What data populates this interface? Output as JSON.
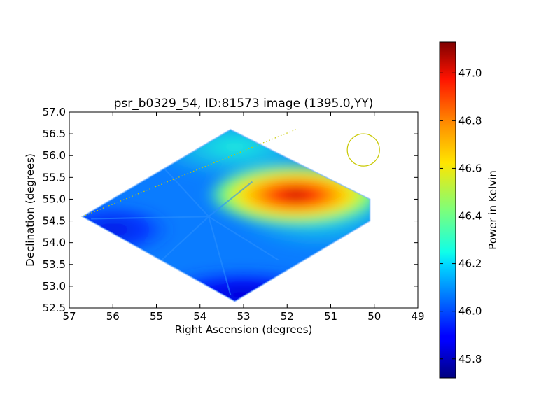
{
  "chart_data": {
    "type": "heatmap",
    "title": "psr_b0329_54, ID:81573 image (1395.0,YY)",
    "xlabel": "Right Ascension (degrees)",
    "ylabel": "Declination (degrees)",
    "xlim": [
      57,
      49
    ],
    "ylim": [
      52.5,
      57.0
    ],
    "x_ticks": [
      57,
      56,
      55,
      54,
      53,
      52,
      51,
      50,
      49
    ],
    "y_ticks": [
      52.5,
      53.0,
      53.5,
      54.0,
      54.5,
      55.0,
      55.5,
      56.0,
      56.5,
      57.0
    ],
    "x_tick_labels": [
      "57",
      "56",
      "55",
      "54",
      "53",
      "52",
      "51",
      "50",
      "49"
    ],
    "y_tick_labels": [
      "52.5",
      "53.0",
      "53.5",
      "54.0",
      "54.5",
      "55.0",
      "55.5",
      "56.0",
      "56.5",
      "57.0"
    ],
    "colormap": "jet",
    "colorbar": {
      "label": "Power in Kelvin",
      "min": 45.72,
      "max": 47.13,
      "ticks": [
        45.8,
        46.0,
        46.2,
        46.4,
        46.6,
        46.8,
        47.0
      ],
      "tick_labels": [
        "45.8",
        "46.0",
        "46.2",
        "46.4",
        "46.6",
        "46.8",
        "47.0"
      ]
    },
    "footprint": {
      "shape": "diamond",
      "vertices_ra_dec": [
        [
          56.7,
          54.6
        ],
        [
          53.3,
          56.6
        ],
        [
          50.1,
          55.0
        ],
        [
          50.1,
          54.5
        ],
        [
          53.2,
          52.65
        ]
      ]
    },
    "hotspot": {
      "ra": 51.8,
      "dec": 55.1,
      "value": 47.13
    },
    "coldspot": {
      "ra": 53.0,
      "dec": 52.8,
      "value": 45.75
    },
    "baseline_value": 46.08,
    "dotted_line": {
      "from": [
        56.7,
        54.6
      ],
      "to": [
        51.8,
        56.6
      ],
      "color": "#c8c800"
    },
    "beam_circle": {
      "ra": 50.25,
      "dec": 56.13,
      "radius_deg": 0.37,
      "color": "#c8c800"
    },
    "grid": false,
    "legend": "none"
  }
}
